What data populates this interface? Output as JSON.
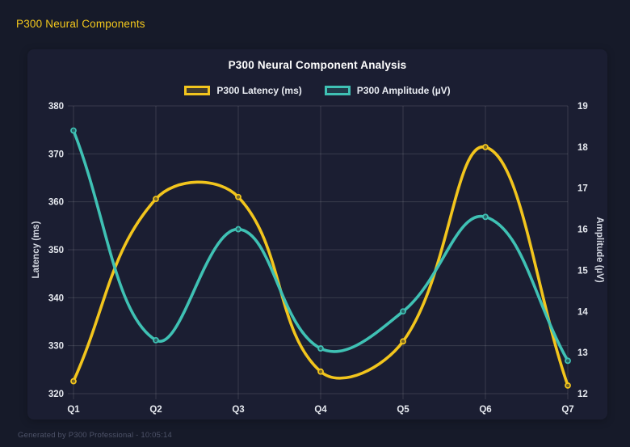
{
  "page": {
    "header_title": "P300 Neural Components",
    "footer": "Generated by P300 Professional - 10:05:14"
  },
  "colors": {
    "page_bg": "#161a29",
    "card_bg": "#1b1e32",
    "header_yellow": "#f5c91c",
    "grid": "rgba(255,255,255,0.13)",
    "tick_text": "#e6e9ef",
    "axis_title_text": "#d4d8e2",
    "latency": "#f2c51d",
    "amplitude": "#3fc1b4"
  },
  "chart_data": {
    "type": "line",
    "title": "P300 Neural Component Analysis",
    "categories": [
      "Q1",
      "Q2",
      "Q3",
      "Q4",
      "Q5",
      "Q6",
      "Q7"
    ],
    "series": [
      {
        "name": "P300 Latency (ms)",
        "axis": "left",
        "color": "#f2c51d",
        "values": [
          322.6,
          360.6,
          361.0,
          324.6,
          330.9,
          371.4,
          321.7
        ]
      },
      {
        "name": "P300 Amplitude (µV)",
        "axis": "right",
        "color": "#3fc1b4",
        "values": [
          18.4,
          13.3,
          16.0,
          13.1,
          14.0,
          16.3,
          12.8
        ]
      }
    ],
    "left_axis": {
      "label": "Latency (ms)",
      "min": 320,
      "max": 380,
      "ticks": [
        320,
        330,
        340,
        350,
        360,
        370,
        380
      ]
    },
    "right_axis": {
      "label": "Amplitude (µV)",
      "min": 12,
      "max": 19,
      "ticks": [
        12,
        13,
        14,
        15,
        16,
        17,
        18,
        19
      ]
    },
    "x_axis_categories_note": "quarter labels Q1-Q7",
    "grid": true,
    "legend_position": "top",
    "smooth": true,
    "line_tension": 0.4
  }
}
